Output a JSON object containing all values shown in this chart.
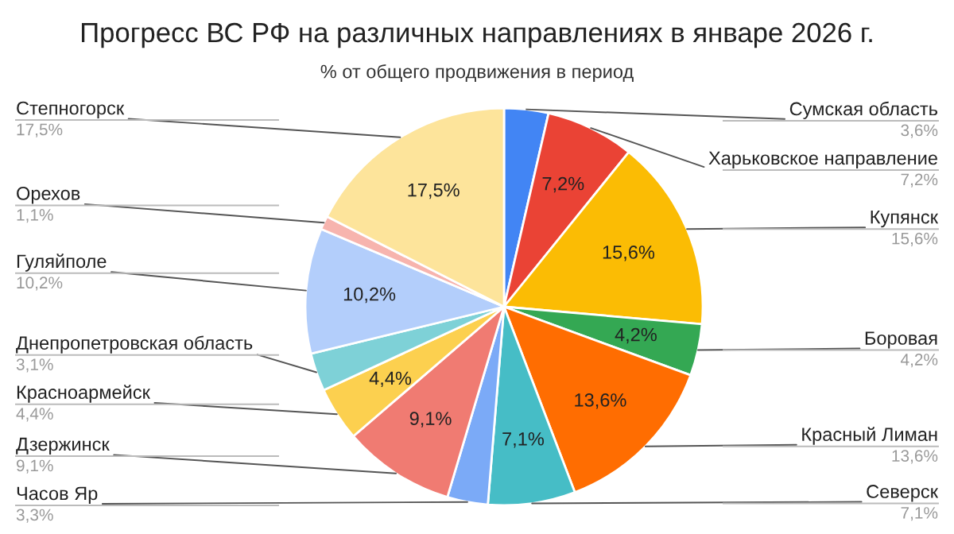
{
  "chart_data": {
    "type": "pie",
    "title": "Прогресс ВС РФ на различных направлениях в январе 2026 г.",
    "subtitle": "% от общего продвижения в период",
    "categories": [
      "Сумская область",
      "Харьковское направление",
      "Купянск",
      "Боровая",
      "Красный Лиман",
      "Северск",
      "Часов Яр",
      "Дзержинск",
      "Красноармейск",
      "Днепропетровская область",
      "Гуляйполе",
      "Орехов",
      "Степногорск"
    ],
    "values": [
      3.6,
      7.2,
      15.6,
      4.2,
      13.6,
      7.1,
      3.3,
      9.1,
      4.4,
      3.1,
      10.2,
      1.1,
      17.5
    ],
    "value_labels": [
      "3,6%",
      "7,2%",
      "15,6%",
      "4,2%",
      "13,6%",
      "7,1%",
      "3,3%",
      "9,1%",
      "4,4%",
      "3,1%",
      "10,2%",
      "1,1%",
      "17,5%"
    ],
    "colors": [
      "#4285f4",
      "#ea4335",
      "#fbbc04",
      "#34a853",
      "#ff6d01",
      "#46bdc6",
      "#7baaf7",
      "#f07b72",
      "#fcd04f",
      "#7ed1d7",
      "#b3cefb",
      "#f7b4ae",
      "#fde49b"
    ]
  }
}
